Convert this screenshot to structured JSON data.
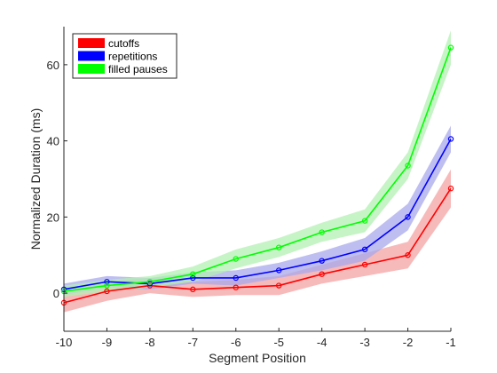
{
  "chart_data": {
    "type": "line",
    "title": "",
    "xlabel": "Segment Position",
    "ylabel": "Normalized Duration (ms)",
    "x": [
      -10,
      -9,
      -8,
      -7,
      -6,
      -5,
      -4,
      -3,
      -2,
      -1
    ],
    "xlim": [
      -10,
      -1
    ],
    "ylim": [
      -10,
      70
    ],
    "xticks": [
      "-10",
      "-9",
      "-8",
      "-7",
      "-6",
      "-5",
      "-4",
      "-3",
      "-2",
      "-1"
    ],
    "yticks": [
      "0",
      "20",
      "40",
      "60"
    ],
    "grid": false,
    "legend_position": "top-left",
    "series": [
      {
        "name": "cutoffs",
        "color": "#ff0000",
        "band_color": "#f4a3a3",
        "values": [
          -2.5,
          0.5,
          2.0,
          1.0,
          1.5,
          2.0,
          5.0,
          7.5,
          10.0,
          27.5
        ],
        "lower": [
          -5.0,
          -2.0,
          0.0,
          -1.0,
          -0.5,
          -0.5,
          2.5,
          4.5,
          6.5,
          22.5
        ],
        "upper": [
          0.0,
          3.0,
          4.0,
          3.0,
          3.5,
          4.5,
          7.5,
          10.5,
          13.5,
          32.5
        ]
      },
      {
        "name": "repetitions",
        "color": "#0000ff",
        "band_color": "#a8a8ec",
        "values": [
          1.0,
          3.0,
          2.5,
          4.0,
          4.0,
          6.0,
          8.5,
          11.5,
          20.0,
          40.5
        ],
        "lower": [
          -0.5,
          1.5,
          1.0,
          2.5,
          2.0,
          4.0,
          6.0,
          8.5,
          16.5,
          37.0
        ],
        "upper": [
          2.5,
          4.5,
          4.0,
          5.5,
          6.0,
          8.0,
          11.0,
          14.5,
          23.5,
          44.0
        ]
      },
      {
        "name": "filled pauses",
        "color": "#00ff00",
        "band_color": "#b3f0b3",
        "values": [
          0.5,
          2.0,
          3.0,
          5.0,
          9.0,
          12.0,
          16.0,
          19.0,
          33.5,
          64.5
        ],
        "lower": [
          -1.0,
          0.5,
          1.5,
          3.0,
          6.5,
          9.5,
          13.5,
          16.0,
          30.0,
          60.0
        ],
        "upper": [
          2.0,
          3.5,
          4.5,
          7.0,
          11.5,
          14.5,
          18.5,
          22.0,
          37.0,
          69.0
        ]
      }
    ]
  }
}
